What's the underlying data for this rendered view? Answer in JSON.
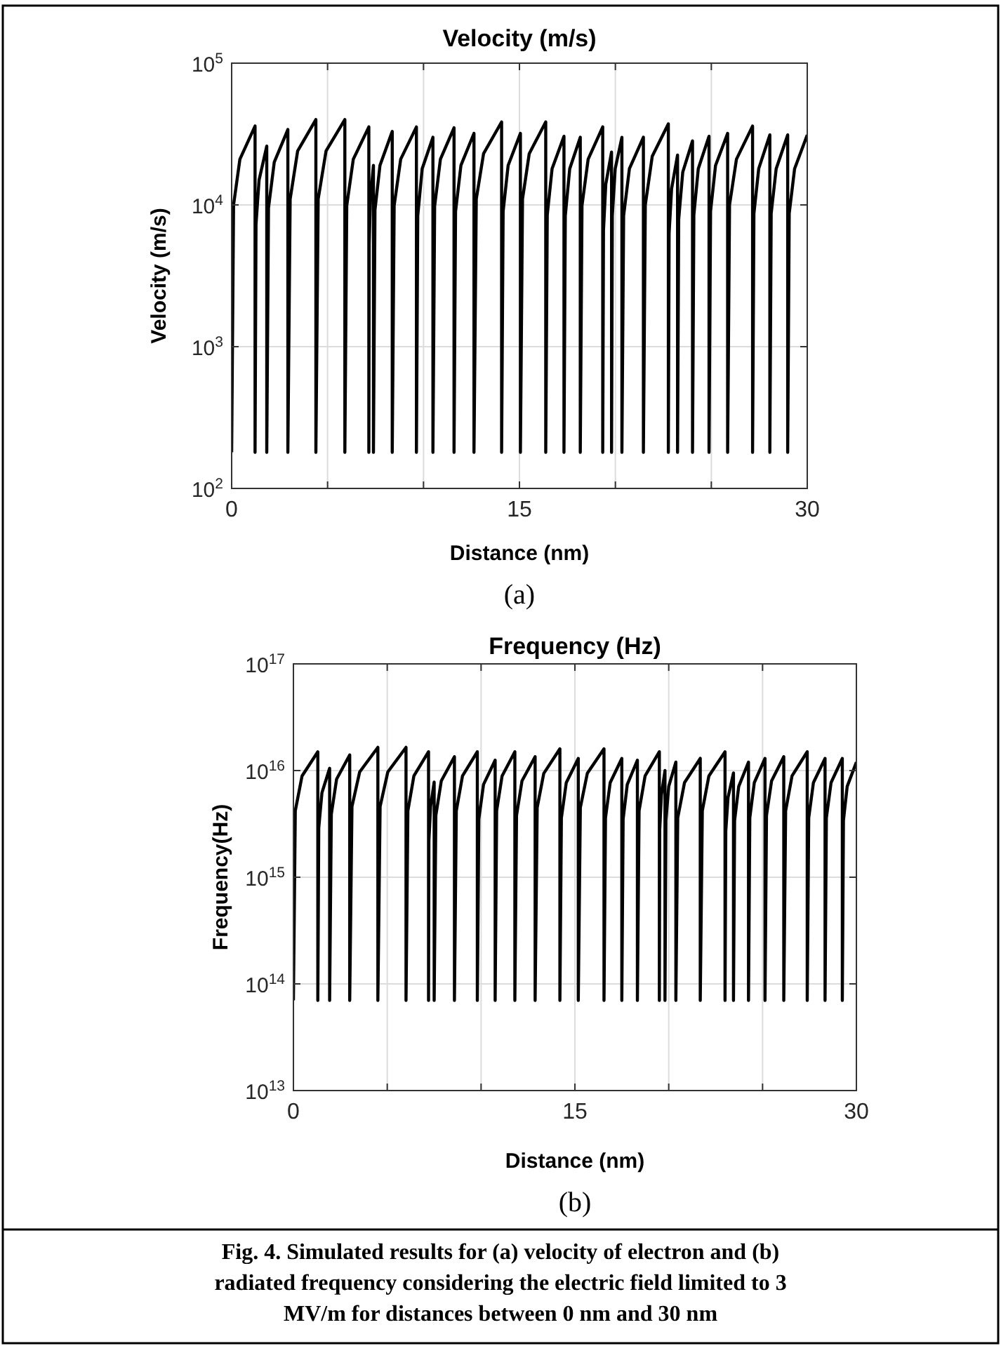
{
  "chart_data": [
    {
      "type": "line",
      "title": "Velocity (m/s)",
      "xlabel": "Distance (nm)",
      "ylabel": "Velocity (m/s)",
      "log": "y",
      "grid": true,
      "annotations": [
        "(a)"
      ],
      "xlim": [
        0,
        30
      ],
      "xticks": [
        0,
        {
          "value": 5,
          "label": null
        },
        {
          "value": 10,
          "label": null
        },
        15,
        {
          "value": 20,
          "label": null
        },
        {
          "value": 25,
          "label": null
        },
        30
      ],
      "ylim": [
        100,
        100000
      ],
      "yticks": [
        {
          "value": 100,
          "label": "10$^{2}$"
        },
        {
          "value": 1000,
          "label": "10$^{3}$"
        },
        {
          "value": 10000,
          "label": "10$^{4}$"
        },
        {
          "value": 100000,
          "label": "10$^{5}$"
        }
      ],
      "series": [
        {
          "color": "#000000",
          "x": [
            0,
            0.1,
            0.43,
            1.22,
            1.22,
            1.27,
            1.43,
            1.83,
            1.83,
            1.92,
            2.22,
            2.93,
            2.93,
            3.05,
            3.44,
            4.39,
            4.39,
            4.51,
            4.92,
            5.9,
            5.9,
            6.0,
            6.34,
            7.15,
            7.15,
            7.17,
            7.23,
            7.39,
            7.39,
            7.47,
            7.73,
            8.37,
            8.37,
            8.47,
            8.81,
            9.63,
            9.63,
            9.7,
            9.93,
            10.49,
            10.49,
            10.58,
            10.88,
            11.59,
            11.59,
            11.67,
            11.95,
            12.63,
            12.63,
            12.75,
            13.13,
            14.07,
            14.07,
            14.15,
            14.41,
            15.05,
            15.05,
            15.16,
            15.51,
            16.37,
            16.37,
            16.45,
            16.7,
            17.32,
            17.32,
            17.39,
            17.62,
            18.17,
            18.17,
            18.26,
            18.58,
            19.34,
            19.34,
            19.38,
            19.5,
            19.8,
            19.8,
            19.84,
            19.99,
            20.34,
            20.34,
            20.43,
            20.73,
            21.46,
            21.46,
            21.56,
            21.92,
            22.76,
            22.76,
            22.8,
            22.93,
            23.24,
            23.24,
            23.3,
            23.51,
            24.02,
            24.02,
            24.09,
            24.32,
            24.88,
            24.88,
            24.96,
            25.22,
            25.85,
            25.85,
            25.95,
            26.31,
            27.15,
            27.15,
            27.22,
            27.47,
            28.05,
            28.05,
            28.12,
            28.38,
            28.98,
            28.98,
            29.06,
            29.34,
            30
          ],
          "values": [
            180,
            10000,
            21000,
            36000,
            180,
            7300,
            15000,
            26000,
            180,
            9500,
            20000,
            34000,
            180,
            11000,
            24000,
            40000,
            180,
            11000,
            24000,
            40000,
            180,
            9900,
            21000,
            35500,
            180,
            5300,
            11000,
            19000,
            180,
            9200,
            19000,
            33000,
            180,
            9900,
            21000,
            35500,
            180,
            8400,
            18000,
            30000,
            180,
            9800,
            21000,
            35000,
            180,
            9000,
            19000,
            32000,
            180,
            11000,
            23000,
            38500,
            180,
            9000,
            19000,
            32000,
            180,
            11000,
            23000,
            38500,
            180,
            8500,
            18000,
            30500,
            180,
            8400,
            18000,
            30000,
            180,
            9900,
            21000,
            35500,
            180,
            6600,
            14000,
            23600,
            180,
            8400,
            18000,
            30000,
            180,
            8400,
            18000,
            30000,
            180,
            10000,
            22000,
            37300,
            180,
            6300,
            13000,
            22500,
            180,
            7900,
            17000,
            28300,
            180,
            8500,
            18000,
            30500,
            180,
            9000,
            19000,
            32000,
            180,
            10000,
            21000,
            36000,
            180,
            8700,
            18000,
            31200,
            180,
            8700,
            18000,
            31200,
            180,
            8700,
            18000,
            31200
          ]
        }
      ]
    },
    {
      "type": "line",
      "title": "Frequency (Hz)",
      "xlabel": "Distance (nm)",
      "ylabel": "Frequency(Hz)",
      "log": "y",
      "grid": true,
      "annotations": [
        "(b)",
        "Fig. 4. Simulated results for (a) velocity of electron and (b) radiated frequency considering the electric field limited to 3 MV/m for distances between 0 nm and 30 nm"
      ],
      "xlim": [
        0,
        30
      ],
      "xticks": [
        0,
        {
          "value": 5,
          "label": null
        },
        {
          "value": 10,
          "label": null
        },
        15,
        {
          "value": 20,
          "label": null
        },
        {
          "value": 25,
          "label": null
        },
        30
      ],
      "ylim": [
        10000000000000.0,
        1e+17
      ],
      "yticks": [
        {
          "value": 10000000000000.0,
          "label": "10$^{13}$"
        },
        {
          "value": 100000000000000.0,
          "label": "10$^{14}$"
        },
        {
          "value": 1000000000000000.0,
          "label": "10$^{15}$"
        },
        {
          "value": 1e+16,
          "label": "10$^{16}$"
        },
        {
          "value": 1e+17,
          "label": "10$^{17}$"
        }
      ],
      "series": [
        {
          "color": "#000000",
          "x": [
            0,
            0.1,
            0.46,
            1.3,
            1.3,
            1.35,
            1.52,
            1.93,
            1.93,
            2.02,
            2.3,
            3.0,
            3.0,
            3.12,
            3.53,
            4.5,
            4.5,
            4.62,
            5.03,
            6.0,
            6.0,
            6.1,
            6.42,
            7.2,
            7.2,
            7.22,
            7.31,
            7.5,
            7.5,
            7.59,
            7.88,
            8.58,
            8.58,
            8.68,
            9.01,
            9.8,
            9.8,
            9.88,
            10.13,
            10.75,
            10.75,
            10.83,
            11.12,
            11.8,
            11.8,
            11.89,
            12.18,
            12.88,
            12.88,
            12.99,
            13.34,
            14.2,
            14.2,
            14.28,
            14.54,
            15.18,
            15.18,
            15.29,
            15.66,
            16.55,
            16.55,
            16.63,
            16.88,
            17.5,
            17.5,
            17.57,
            17.79,
            18.33,
            18.33,
            18.42,
            18.74,
            19.5,
            19.5,
            19.52,
            19.61,
            19.8,
            19.8,
            19.85,
            20.0,
            20.38,
            20.38,
            20.48,
            20.84,
            21.68,
            21.68,
            21.79,
            22.14,
            23.0,
            23.0,
            23.04,
            23.16,
            23.45,
            23.45,
            23.51,
            23.73,
            24.25,
            24.25,
            24.32,
            24.56,
            25.13,
            25.13,
            25.21,
            25.48,
            26.13,
            26.13,
            26.23,
            26.57,
            27.38,
            27.38,
            27.46,
            27.71,
            28.33,
            28.33,
            28.4,
            28.65,
            29.25,
            29.25,
            29.31,
            29.51,
            30
          ],
          "values": [
            70000000000000.0,
            4200000000000000.0,
            8900000000000000.0,
            1.5e+16,
            70000000000000.0,
            2900000000000000.0,
            6200000000000000.0,
            1.05e+16,
            70000000000000.0,
            3900000000000000.0,
            8300000000000000.0,
            1.4e+16,
            70000000000000.0,
            4600000000000000.0,
            9700000000000000.0,
            1.65e+16,
            70000000000000.0,
            4600000000000000.0,
            9700000000000000.0,
            1.65e+16,
            70000000000000.0,
            4200000000000000.0,
            8900000000000000.0,
            1.5e+16,
            70000000000000.0,
            2200000000000000.0,
            4600000000000000.0,
            7800000000000000.0,
            70000000000000.0,
            3800000000000000.0,
            8000000000000000.0,
            1.35e+16,
            70000000000000.0,
            4200000000000000.0,
            8900000000000000.0,
            1.5e+16,
            70000000000000.0,
            3500000000000000.0,
            7400000000000000.0,
            1.25e+16,
            70000000000000.0,
            4200000000000000.0,
            8900000000000000.0,
            1.5e+16,
            70000000000000.0,
            3800000000000000.0,
            8000000000000000.0,
            1.35e+16,
            70000000000000.0,
            4500000000000000.0,
            9400000000000000.0,
            1.6e+16,
            70000000000000.0,
            3600000000000000.0,
            7700000000000000.0,
            1.3e+16,
            70000000000000.0,
            4500000000000000.0,
            9400000000000000.0,
            1.6e+16,
            70000000000000.0,
            3600000000000000.0,
            7700000000000000.0,
            1.3e+16,
            70000000000000.0,
            3500000000000000.0,
            7400000000000000.0,
            1.25e+16,
            70000000000000.0,
            4200000000000000.0,
            8900000000000000.0,
            1.5e+16,
            70000000000000.0,
            2800000000000000.0,
            5900000000000000.0,
            1e+16,
            70000000000000.0,
            3400000000000000.0,
            7100000000000000.0,
            1.2e+16,
            70000000000000.0,
            3600000000000000.0,
            7700000000000000.0,
            1.3e+16,
            70000000000000.0,
            4200000000000000.0,
            8900000000000000.0,
            1.5e+16,
            70000000000000.0,
            2700000000000000.0,
            5600000000000000.0,
            9500000000000000.0,
            70000000000000.0,
            3400000000000000.0,
            7100000000000000.0,
            1.2e+16,
            70000000000000.0,
            3600000000000000.0,
            7700000000000000.0,
            1.3e+16,
            70000000000000.0,
            3800000000000000.0,
            8000000000000000.0,
            1.35e+16,
            70000000000000.0,
            4200000000000000.0,
            8900000000000000.0,
            1.5e+16,
            70000000000000.0,
            3600000000000000.0,
            7700000000000000.0,
            1.3e+16,
            70000000000000.0,
            3600000000000000.0,
            7700000000000000.0,
            1.3e+16,
            70000000000000.0,
            3400000000000000.0,
            7100000000000000.0,
            1.2e+16
          ]
        }
      ]
    }
  ]
}
